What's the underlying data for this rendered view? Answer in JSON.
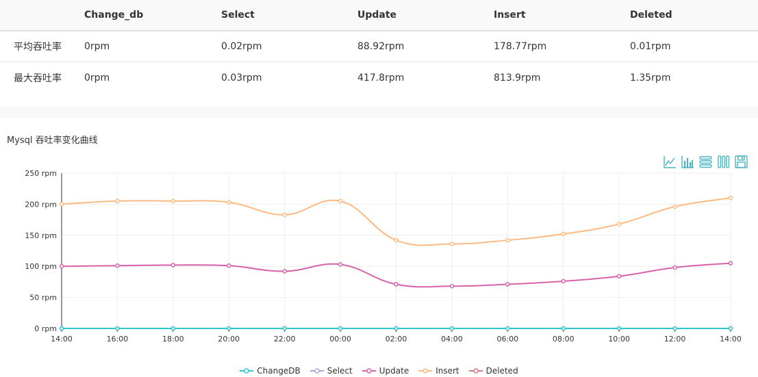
{
  "table": {
    "headers": [
      "",
      "Change_db",
      "Select",
      "Update",
      "Insert",
      "Deleted"
    ],
    "rows": [
      [
        "平均吞吐率",
        "0rpm",
        "0.02rpm",
        "88.92rpm",
        "178.77rpm",
        "0.01rpm"
      ],
      [
        "最大吞吐率",
        "0rpm",
        "0.03rpm",
        "417.8rpm",
        "813.9rpm",
        "1.35rpm"
      ]
    ]
  },
  "chart_title": "Mysql 吞吐率变化曲线",
  "toolbox": [
    "line-chart-icon",
    "bar-chart-icon",
    "stack-icon",
    "tiled-icon",
    "save-icon"
  ],
  "chart_data": {
    "type": "line",
    "title": "Mysql 吞吐率变化曲线",
    "x": [
      "14:00",
      "16:00",
      "18:00",
      "20:00",
      "22:00",
      "00:00",
      "02:00",
      "04:00",
      "06:00",
      "08:00",
      "10:00",
      "12:00",
      "14:00"
    ],
    "y_ticks": [
      "0 rpm",
      "50 rpm",
      "100 rpm",
      "150 rpm",
      "200 rpm",
      "250 rpm"
    ],
    "ylim": [
      0,
      250
    ],
    "ylabel_unit": "rpm",
    "grid": true,
    "legend_position": "bottom-center",
    "series": [
      {
        "name": "ChangeDB",
        "color": "#2ec7c9",
        "values": [
          0,
          0,
          0,
          0,
          0,
          0,
          0,
          0,
          0,
          0,
          0,
          0,
          0
        ]
      },
      {
        "name": "Select",
        "color": "#b6a2de",
        "values": [
          0,
          0,
          0,
          0,
          0,
          0,
          0,
          0,
          0,
          0,
          0,
          0,
          0
        ]
      },
      {
        "name": "Update",
        "color": "#d762aa",
        "values": [
          100,
          101,
          102,
          101,
          92,
          103,
          71,
          68,
          71,
          76,
          84,
          98,
          105
        ]
      },
      {
        "name": "Insert",
        "color": "#ffb980",
        "values": [
          200,
          205,
          205,
          203,
          183,
          205,
          142,
          136,
          142,
          152,
          168,
          196,
          210
        ]
      },
      {
        "name": "Deleted",
        "color": "#d87a80",
        "values": [
          0,
          0,
          0,
          0,
          0,
          0,
          0,
          0,
          0,
          0,
          0,
          0,
          0
        ]
      }
    ]
  }
}
